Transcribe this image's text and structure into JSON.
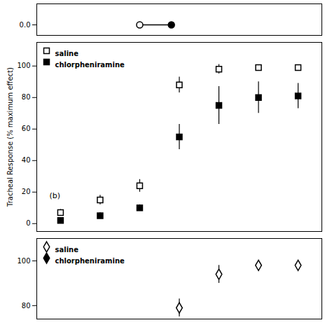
{
  "chart_data": [
    {
      "type": "line",
      "x": [
        -4.0,
        -3.6
      ],
      "series": [
        {
          "values": [
            0,
            0
          ],
          "color": "#000000",
          "marker": "circle",
          "colors": [
            "#ffffff",
            "#000000"
          ]
        }
      ],
      "xlim": [
        -5.3,
        -1.7
      ],
      "ylim": [
        -2,
        4
      ],
      "yticks": [
        0
      ],
      "tick_labels": "y"
    },
    {
      "type": "scatter",
      "x": [
        -5,
        -4.5,
        -4,
        -3.5,
        -3,
        -2.5,
        -2
      ],
      "series": [
        {
          "name": "saline",
          "values": [
            7,
            15,
            24,
            88,
            98,
            99,
            99
          ],
          "errors": [
            2,
            3,
            4,
            5,
            3,
            1,
            1
          ],
          "color": "#ffffff",
          "marker": "square"
        },
        {
          "name": "chlorpheniramine",
          "values": [
            2,
            5,
            10,
            55,
            75,
            80,
            81
          ],
          "errors": [
            1,
            2,
            2,
            8,
            12,
            10,
            8
          ],
          "color": "#000000",
          "marker": "square"
        }
      ],
      "ylabel": "Tracheal Response (% maximum effect)",
      "annotation": "(b)",
      "xlim": [
        -5.3,
        -1.7
      ],
      "ylim": [
        -5,
        115
      ],
      "yticks": [
        0,
        20,
        40,
        60,
        80,
        100
      ],
      "legend": "upper left",
      "tick_labels": "y"
    },
    {
      "type": "scatter",
      "x": [
        -3.5,
        -3,
        -2.5,
        -2
      ],
      "series": [
        {
          "name": "saline",
          "values": [
            79,
            94,
            98,
            98
          ],
          "errors": [
            4,
            4,
            2,
            2
          ],
          "color": "#ffffff",
          "marker": "diamond"
        },
        {
          "name": "chlorpheniramine",
          "values": [
            null,
            null,
            null,
            null
          ],
          "errors": [
            null,
            null,
            null,
            null
          ],
          "color": "#000000",
          "marker": "diamond"
        }
      ],
      "xlim": [
        -5.3,
        -1.7
      ],
      "ylim": [
        74,
        110
      ],
      "yticks": [
        80,
        100
      ],
      "legend": "upper left",
      "tick_labels": "y"
    }
  ]
}
